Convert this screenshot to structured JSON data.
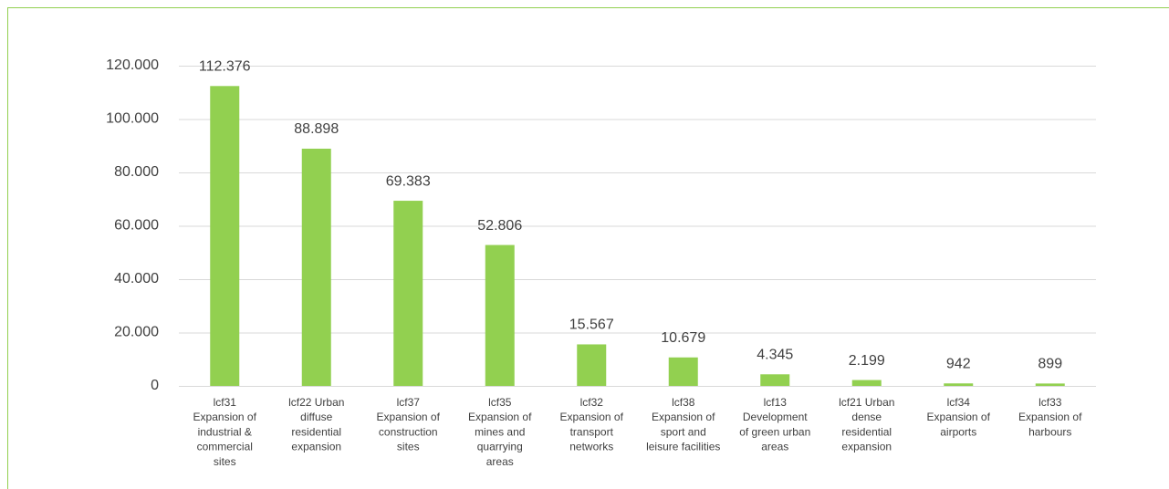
{
  "chart_data": {
    "type": "bar",
    "categories": [
      "lcf31 Expansion of industrial & commercial sites",
      "lcf22 Urban diffuse residential expansion",
      "lcf37 Expansion of construction sites",
      "lcf35 Expansion of mines and quarrying areas",
      "lcf32 Expansion of transport networks",
      "lcf38 Expansion of sport and leisure facilities",
      "lcf13 Development of green urban areas",
      "lcf21 Urban dense residential expansion",
      "lcf34 Expansion of airports",
      "lcf33 Expansion of harbours"
    ],
    "values": [
      112376,
      88898,
      69383,
      52806,
      15567,
      10679,
      4345,
      2199,
      942,
      899
    ],
    "value_labels": [
      "112.376",
      "88.898",
      "69.383",
      "52.806",
      "15.567",
      "10.679",
      "4.345",
      "2.199",
      "942",
      "899"
    ],
    "color": "#92d050",
    "ylim": [
      0,
      120000
    ],
    "yticks": [
      0,
      {
        "value": 20000,
        "label": "20.000"
      },
      {
        "value": 40000,
        "label": "40.000"
      },
      {
        "value": 60000,
        "label": "60.000"
      },
      {
        "value": 80000,
        "label": "80.000"
      },
      {
        "value": 100000,
        "label": "100.000"
      },
      {
        "value": 120000,
        "label": "120.000"
      }
    ],
    "grid": true
  }
}
